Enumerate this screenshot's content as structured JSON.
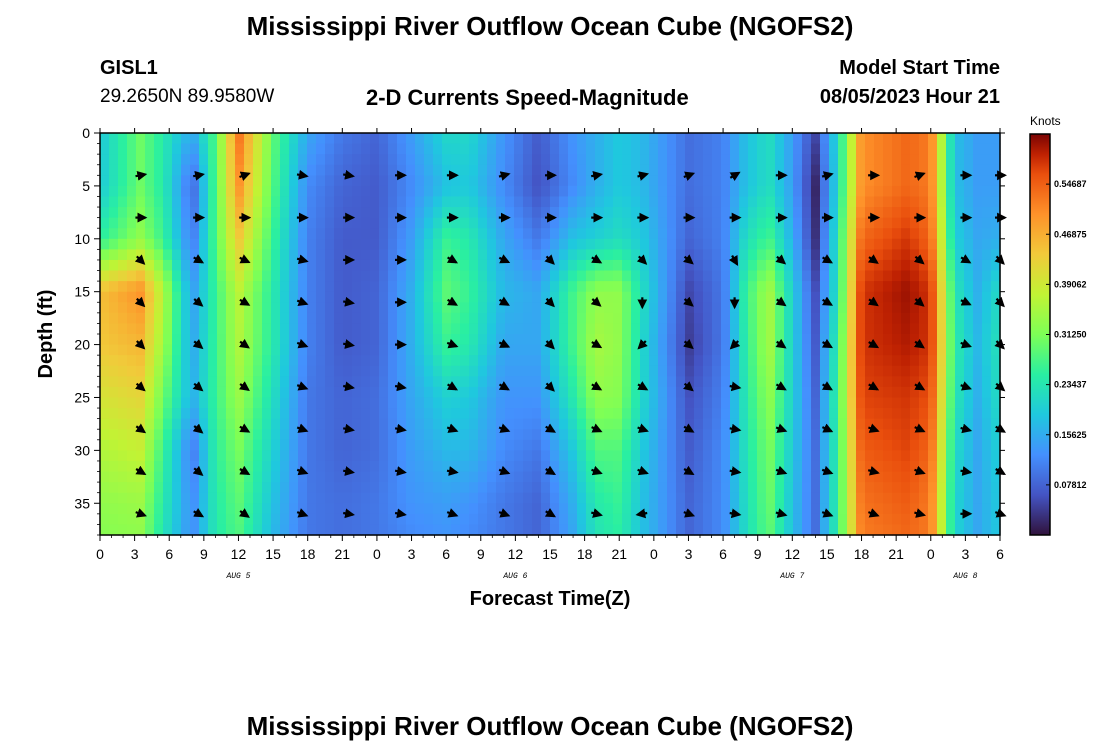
{
  "header": {
    "title": "Mississippi River Outflow Ocean Cube (NGOFS2)",
    "station": "GISL1",
    "coords": "29.2650N  89.9580W",
    "product": "2-D Currents Speed-Magnitude",
    "model_start_label": "Model Start Time",
    "model_start_value": "08/05/2023 Hour 21"
  },
  "footer": {
    "title": "Mississippi River Outflow Ocean Cube (NGOFS2)"
  },
  "chart_data": {
    "type": "heatmap",
    "xlabel": "Forecast Time(Z)",
    "ylabel": "Depth (ft)",
    "x_range_hours": [
      0,
      78
    ],
    "y_range": [
      0,
      38
    ],
    "y_inverted": true,
    "x_tick_labels": [
      "0",
      "3",
      "6",
      "9",
      "12",
      "15",
      "18",
      "21",
      "0",
      "3",
      "6",
      "9",
      "12",
      "15",
      "18",
      "21",
      "0",
      "3",
      "6",
      "9",
      "12",
      "15",
      "18",
      "21",
      "0",
      "3",
      "6"
    ],
    "y_ticks": [
      0,
      5,
      10,
      15,
      20,
      25,
      30,
      35
    ],
    "date_labels": [
      {
        "text": "AUG 5",
        "hour": 12
      },
      {
        "text": "AUG 6",
        "hour": 36
      },
      {
        "text": "AUG 7",
        "hour": 60
      },
      {
        "text": "AUG 8",
        "hour": 75
      }
    ],
    "colorbar": {
      "unit": "Knots",
      "range": [
        0,
        0.625
      ],
      "tick_labels": [
        "0.07812",
        "0.15625",
        "0.23437",
        "0.31250",
        "0.39062",
        "0.46875",
        "0.54687"
      ],
      "tick_values": [
        0.07812,
        0.15625,
        0.23437,
        0.3125,
        0.39062,
        0.46875,
        0.54687
      ]
    },
    "speed_hours": [
      0,
      3.5,
      5.5,
      8,
      10,
      12,
      15,
      18,
      21,
      24,
      27,
      30,
      32,
      35,
      38,
      41,
      43,
      45,
      47,
      51,
      54,
      56,
      58,
      60,
      62,
      64,
      66,
      70,
      72,
      74,
      76,
      78
    ],
    "speed_depths": [
      0,
      5,
      10,
      15,
      20,
      25,
      30,
      35,
      38
    ],
    "speed_knots": [
      [
        0.19,
        0.3,
        0.24,
        0.15,
        0.28,
        0.53,
        0.29,
        0.15,
        0.1,
        0.08,
        0.14,
        0.21,
        0.21,
        0.13,
        0.07,
        0.13,
        0.16,
        0.19,
        0.17,
        0.09,
        0.11,
        0.18,
        0.22,
        0.14,
        0.05,
        0.22,
        0.5,
        0.54,
        0.52,
        0.18,
        0.14,
        0.14
      ],
      [
        0.19,
        0.3,
        0.24,
        0.08,
        0.28,
        0.5,
        0.28,
        0.12,
        0.08,
        0.07,
        0.12,
        0.18,
        0.19,
        0.12,
        0.06,
        0.12,
        0.16,
        0.19,
        0.17,
        0.09,
        0.11,
        0.18,
        0.22,
        0.14,
        0.02,
        0.22,
        0.5,
        0.54,
        0.52,
        0.18,
        0.14,
        0.14
      ],
      [
        0.25,
        0.33,
        0.26,
        0.1,
        0.28,
        0.44,
        0.26,
        0.11,
        0.07,
        0.07,
        0.14,
        0.26,
        0.24,
        0.15,
        0.1,
        0.18,
        0.2,
        0.22,
        0.19,
        0.08,
        0.11,
        0.22,
        0.27,
        0.16,
        0.03,
        0.24,
        0.54,
        0.58,
        0.54,
        0.2,
        0.15,
        0.16
      ],
      [
        0.45,
        0.5,
        0.36,
        0.14,
        0.26,
        0.37,
        0.24,
        0.11,
        0.07,
        0.08,
        0.16,
        0.29,
        0.26,
        0.17,
        0.15,
        0.27,
        0.33,
        0.33,
        0.22,
        0.05,
        0.1,
        0.26,
        0.35,
        0.2,
        0.06,
        0.24,
        0.58,
        0.61,
        0.58,
        0.24,
        0.16,
        0.22
      ],
      [
        0.44,
        0.46,
        0.34,
        0.15,
        0.26,
        0.36,
        0.24,
        0.11,
        0.07,
        0.08,
        0.16,
        0.26,
        0.24,
        0.15,
        0.15,
        0.27,
        0.35,
        0.33,
        0.21,
        0.04,
        0.1,
        0.25,
        0.35,
        0.2,
        0.07,
        0.26,
        0.58,
        0.6,
        0.58,
        0.25,
        0.17,
        0.23
      ],
      [
        0.4,
        0.42,
        0.3,
        0.16,
        0.26,
        0.34,
        0.22,
        0.1,
        0.08,
        0.09,
        0.15,
        0.2,
        0.19,
        0.13,
        0.13,
        0.24,
        0.33,
        0.32,
        0.21,
        0.06,
        0.11,
        0.24,
        0.33,
        0.2,
        0.08,
        0.27,
        0.57,
        0.58,
        0.56,
        0.24,
        0.16,
        0.22
      ],
      [
        0.36,
        0.38,
        0.26,
        0.1,
        0.25,
        0.31,
        0.2,
        0.1,
        0.08,
        0.09,
        0.14,
        0.17,
        0.17,
        0.12,
        0.1,
        0.19,
        0.28,
        0.28,
        0.19,
        0.07,
        0.12,
        0.23,
        0.31,
        0.19,
        0.09,
        0.26,
        0.55,
        0.57,
        0.54,
        0.22,
        0.15,
        0.2
      ],
      [
        0.33,
        0.34,
        0.24,
        0.12,
        0.24,
        0.29,
        0.18,
        0.1,
        0.09,
        0.1,
        0.13,
        0.14,
        0.13,
        0.1,
        0.08,
        0.16,
        0.24,
        0.26,
        0.18,
        0.08,
        0.12,
        0.22,
        0.3,
        0.18,
        0.09,
        0.26,
        0.53,
        0.55,
        0.52,
        0.21,
        0.15,
        0.19
      ],
      [
        0.32,
        0.33,
        0.23,
        0.12,
        0.24,
        0.28,
        0.17,
        0.1,
        0.09,
        0.1,
        0.12,
        0.13,
        0.12,
        0.1,
        0.08,
        0.15,
        0.23,
        0.25,
        0.18,
        0.08,
        0.12,
        0.22,
        0.29,
        0.18,
        0.09,
        0.26,
        0.52,
        0.54,
        0.52,
        0.21,
        0.15,
        0.19
      ]
    ],
    "vector_columns_hours": [
      3.5,
      8.5,
      12.5,
      17.5,
      21.5,
      26,
      30.5,
      35,
      39,
      43,
      47,
      51,
      55,
      59,
      63,
      67,
      71,
      75,
      78
    ],
    "vector_depths": [
      4,
      8,
      12,
      16,
      20,
      24,
      28,
      32,
      36
    ],
    "vector_angles_deg": [
      [
        -10,
        -10,
        -20,
        10,
        10,
        0,
        0,
        -15,
        0,
        -10,
        -15,
        -20,
        -30,
        0,
        -15,
        0,
        -20,
        0,
        0
      ],
      [
        0,
        0,
        0,
        0,
        0,
        0,
        0,
        0,
        0,
        0,
        0,
        0,
        0,
        0,
        0,
        0,
        0,
        0,
        0
      ],
      [
        45,
        30,
        25,
        15,
        0,
        0,
        30,
        25,
        45,
        30,
        45,
        40,
        60,
        40,
        30,
        35,
        40,
        30,
        45
      ],
      [
        45,
        40,
        30,
        20,
        10,
        0,
        30,
        30,
        45,
        40,
        90,
        40,
        90,
        35,
        30,
        35,
        40,
        25,
        45
      ],
      [
        45,
        40,
        35,
        20,
        10,
        0,
        20,
        25,
        45,
        30,
        135,
        40,
        135,
        35,
        30,
        30,
        35,
        20,
        45
      ],
      [
        40,
        40,
        35,
        20,
        10,
        10,
        30,
        30,
        45,
        30,
        30,
        40,
        10,
        30,
        30,
        30,
        30,
        20,
        40
      ],
      [
        35,
        40,
        30,
        20,
        10,
        10,
        20,
        20,
        30,
        25,
        20,
        30,
        10,
        20,
        25,
        20,
        25,
        15,
        30
      ],
      [
        30,
        40,
        30,
        20,
        10,
        10,
        10,
        20,
        30,
        20,
        20,
        30,
        10,
        20,
        20,
        15,
        20,
        10,
        30
      ],
      [
        20,
        30,
        35,
        20,
        10,
        10,
        20,
        20,
        30,
        15,
        170,
        20,
        10,
        15,
        20,
        20,
        15,
        0,
        20
      ]
    ]
  }
}
